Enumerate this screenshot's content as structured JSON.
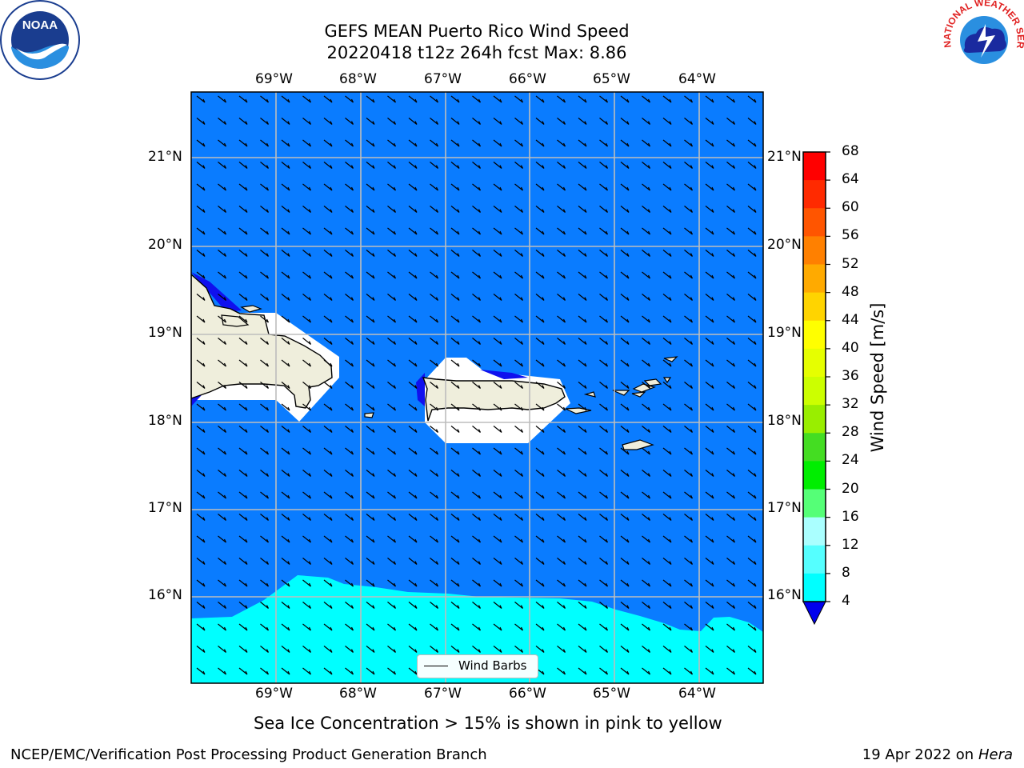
{
  "header": {
    "title_line1": "GEFS MEAN Puerto Rico Wind Speed",
    "title_line2": "20220418 t12z 264h fcst   Max: 8.86"
  },
  "logos": {
    "left": "NOAA",
    "right_text": "NATIONAL WEATHER SERVICE"
  },
  "map": {
    "lon_labels": [
      "69°W",
      "68°W",
      "67°W",
      "66°W",
      "65°W",
      "64°W"
    ],
    "lat_labels": [
      "21°N",
      "20°N",
      "19°N",
      "18°N",
      "17°N",
      "16°N"
    ],
    "ocean_color": "#0a7cff",
    "cyan_color": "#00ffff",
    "land_color": "#efeedc",
    "legend_label": "Wind Barbs"
  },
  "colorbar": {
    "label": "Wind Speed [m/s]",
    "ticks": [
      "68",
      "64",
      "60",
      "56",
      "52",
      "48",
      "44",
      "40",
      "36",
      "32",
      "28",
      "24",
      "20",
      "16",
      "12",
      "8",
      "4"
    ],
    "colors": [
      "#ff0000",
      "#ff2a00",
      "#ff5500",
      "#ff8000",
      "#ffaa00",
      "#ffd400",
      "#ffff00",
      "#e6ff00",
      "#ccff00",
      "#99ee00",
      "#44dd22",
      "#00ee00",
      "#55ff77",
      "#aaffff",
      "#55ffff",
      "#00ffff",
      "#0a7cff"
    ],
    "under_color": "#0000ee"
  },
  "footer": {
    "note": "Sea Ice Concentration > 15% is shown in pink to yellow",
    "left": "NCEP/EMC/Verification Post Processing Product Generation Branch",
    "right_date": "19 Apr 2022 on ",
    "right_host": "Hera"
  }
}
